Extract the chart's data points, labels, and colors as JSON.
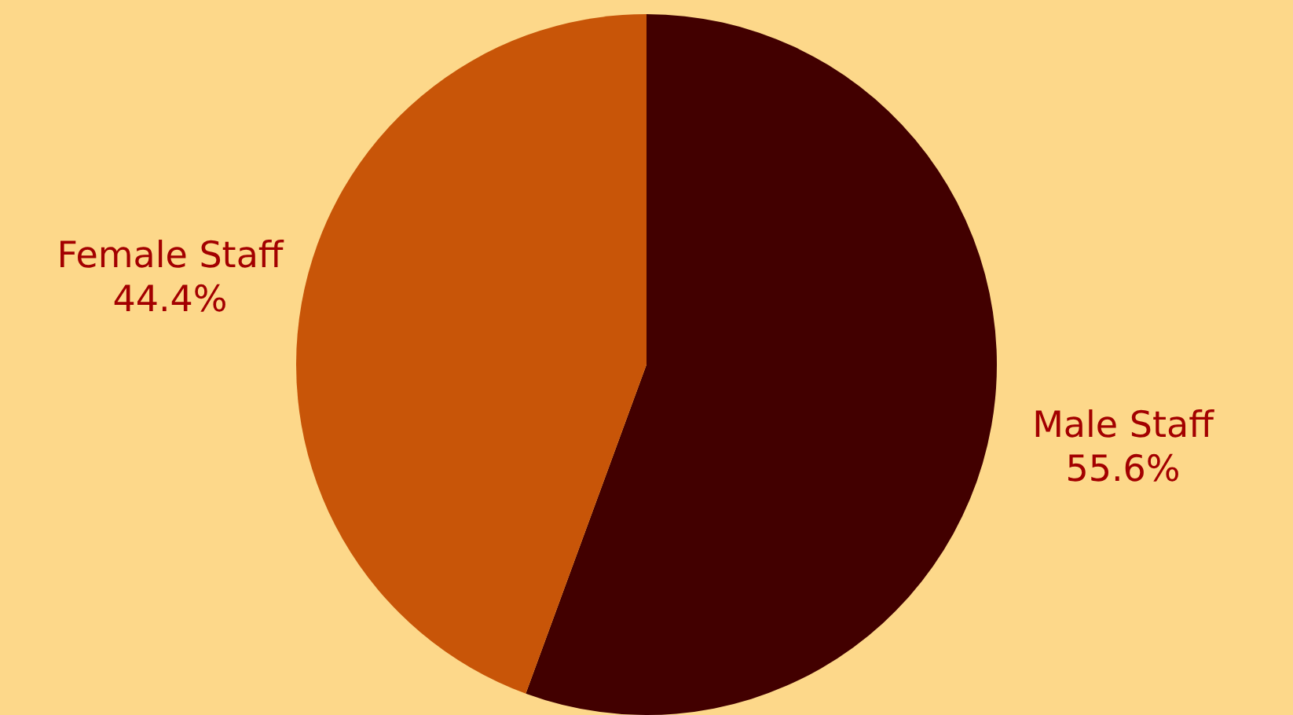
{
  "chart_data": {
    "type": "pie",
    "categories": [
      "Male Staff",
      "Female Staff"
    ],
    "values": [
      55.6,
      44.4
    ],
    "colors": [
      "#420000",
      "#c85508"
    ],
    "value_labels": [
      "55.6%",
      "44.4%"
    ],
    "legend": false
  }
}
